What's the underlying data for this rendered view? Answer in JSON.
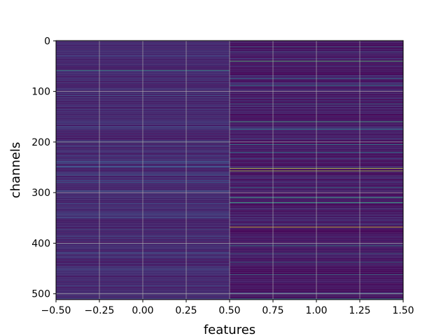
{
  "chart_data": {
    "type": "heatmap",
    "title": "",
    "xlabel": "features",
    "ylabel": "channels",
    "x_range": [
      -0.5,
      1.5
    ],
    "y_range": [
      511.5,
      -0.5
    ],
    "y_inverted": true,
    "columns": [
      0,
      1
    ],
    "rows": 512,
    "colormap": "viridis",
    "grid": true,
    "x_ticks": [
      "−0.50",
      "−0.25",
      "0.00",
      "0.25",
      "0.50",
      "0.75",
      "1.00",
      "1.25",
      "1.50"
    ],
    "x_tick_values": [
      -0.5,
      -0.25,
      0.0,
      0.25,
      0.5,
      0.75,
      1.0,
      1.25,
      1.5
    ],
    "y_ticks": [
      "0",
      "100",
      "200",
      "300",
      "400",
      "500"
    ],
    "y_tick_values": [
      0,
      100,
      200,
      300,
      400,
      500
    ],
    "column_base_intensity": [
      0.1,
      0.05
    ],
    "highlight_rows": {
      "column_0": [
        {
          "row": 58,
          "v": 0.55
        },
        {
          "row": 200,
          "v": 0.5
        },
        {
          "row": 240,
          "v": 0.3
        },
        {
          "row": 265,
          "v": 0.3
        },
        {
          "row": 280,
          "v": 0.3
        },
        {
          "row": 372,
          "v": 0.3
        },
        {
          "row": 420,
          "v": 0.28
        },
        {
          "row": 500,
          "v": 0.28
        }
      ],
      "column_1": [
        {
          "row": 12,
          "v": 0.4
        },
        {
          "row": 22,
          "v": 0.35
        },
        {
          "row": 40,
          "v": 0.7
        },
        {
          "row": 75,
          "v": 0.4
        },
        {
          "row": 88,
          "v": 0.5
        },
        {
          "row": 125,
          "v": 0.4
        },
        {
          "row": 160,
          "v": 0.6
        },
        {
          "row": 175,
          "v": 0.45
        },
        {
          "row": 205,
          "v": 0.45
        },
        {
          "row": 220,
          "v": 0.45
        },
        {
          "row": 252,
          "v": 0.9
        },
        {
          "row": 257,
          "v": 0.85
        },
        {
          "row": 290,
          "v": 0.45
        },
        {
          "row": 310,
          "v": 0.6
        },
        {
          "row": 320,
          "v": 0.6
        },
        {
          "row": 368,
          "v": 0.95
        },
        {
          "row": 405,
          "v": 0.5
        },
        {
          "row": 420,
          "v": 0.4
        },
        {
          "row": 438,
          "v": 0.45
        },
        {
          "row": 462,
          "v": 0.45
        },
        {
          "row": 500,
          "v": 0.4
        },
        {
          "row": 510,
          "v": 0.45
        }
      ]
    }
  }
}
